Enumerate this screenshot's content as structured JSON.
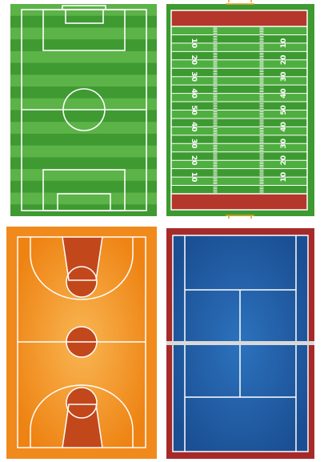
{
  "fields": [
    {
      "sport": "soccer",
      "colors": {
        "base": "#3f9a32",
        "stripe_light": "#5cb347",
        "line": "#ffffff",
        "border": "#2f7a25"
      }
    },
    {
      "sport": "american-football",
      "colors": {
        "base": "#3d9a31",
        "stripe_light": "#4fae40",
        "endzone": "#b5362b",
        "line": "#ffffff",
        "goalpost": "#e3a21a"
      },
      "yard_numbers_left": [
        "10",
        "20",
        "30",
        "40",
        "50",
        "40",
        "30",
        "20",
        "10"
      ],
      "yard_numbers_right": [
        "10",
        "20",
        "30",
        "40",
        "50",
        "40",
        "30",
        "20",
        "10"
      ]
    },
    {
      "sport": "basketball",
      "colors": {
        "outer": "#f08a1c",
        "inner": "#f5a43c",
        "paint": "#c2481c",
        "line": "#ffffff"
      }
    },
    {
      "sport": "tennis",
      "colors": {
        "surround": "#a52a2a",
        "court": "#1f5fa8",
        "line": "#ffffff",
        "net": "#d9d9d9"
      }
    }
  ]
}
